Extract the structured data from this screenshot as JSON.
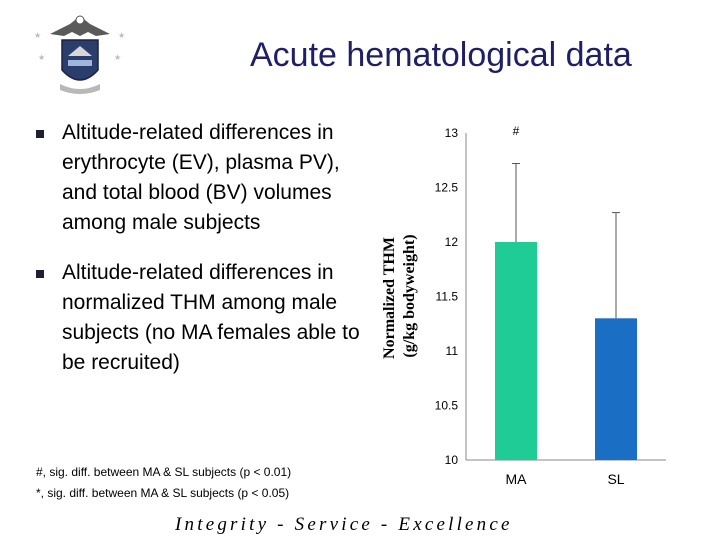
{
  "slide": {
    "title": "Acute hematological data",
    "bullets": [
      "Altitude-related differences in erythrocyte (EV), plasma PV), and total blood (BV) volumes among male subjects",
      "Altitude-related differences in normalized THM among male subjects (no MA females able to be recruited)"
    ],
    "notes": [
      "#, sig. diff. between MA & SL subjects (p < 0.01)",
      "*, sig. diff. between MA & SL subjects (p < 0.05)"
    ],
    "footer": "Integrity - Service - Excellence"
  },
  "chart_data": {
    "type": "bar",
    "categories": [
      "MA",
      "SL"
    ],
    "values": [
      12.0,
      11.3
    ],
    "error_upper": [
      12.72,
      12.27
    ],
    "bar_colors": [
      "#1fcc96",
      "#1a6fc4"
    ],
    "annotations": [
      "#",
      ""
    ],
    "ylabel": "Normalized THM (g/kg bodyweight)",
    "ylabel_lines": [
      "Normalized THM",
      "(g/kg bodyweight)"
    ],
    "ylim": [
      10,
      13
    ],
    "yticks": [
      "10",
      "10.5",
      "11",
      "11.5",
      "12",
      "12.5",
      "13"
    ],
    "grid": false
  }
}
